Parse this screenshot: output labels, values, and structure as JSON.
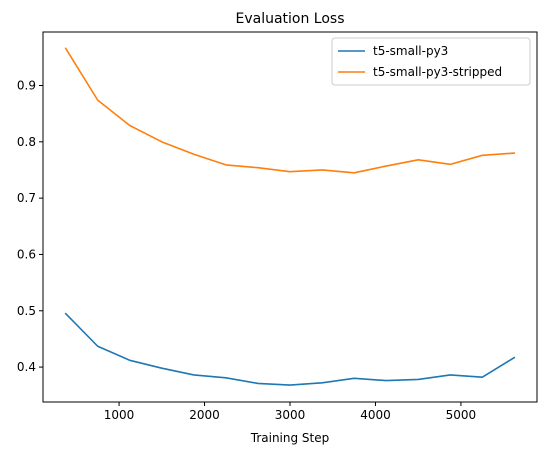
{
  "chart_data": {
    "type": "line",
    "title": "Evaluation Loss",
    "xlabel": "Training Step",
    "ylabel": "",
    "xlim": [
      110,
      5890
    ],
    "ylim": [
      0.338,
      0.995
    ],
    "xticks": [
      1000,
      2000,
      3000,
      4000,
      5000
    ],
    "yticks": [
      0.4,
      0.5,
      0.6,
      0.7,
      0.8,
      0.9
    ],
    "grid": false,
    "legend": "top-right",
    "x": [
      375,
      750,
      1125,
      1500,
      1875,
      2250,
      2625,
      3000,
      3375,
      3750,
      4125,
      4500,
      4875,
      5250,
      5625
    ],
    "series": [
      {
        "name": "t5-small-py3",
        "color": "#1f77b4",
        "values": [
          0.495,
          0.437,
          0.412,
          0.398,
          0.386,
          0.381,
          0.371,
          0.368,
          0.372,
          0.38,
          0.376,
          0.378,
          0.386,
          0.382,
          0.417
        ]
      },
      {
        "name": "t5-small-py3-stripped",
        "color": "#ff7f0e",
        "values": [
          0.966,
          0.874,
          0.829,
          0.8,
          0.778,
          0.759,
          0.754,
          0.747,
          0.75,
          0.745,
          0.757,
          0.768,
          0.76,
          0.776,
          0.78
        ]
      }
    ]
  }
}
